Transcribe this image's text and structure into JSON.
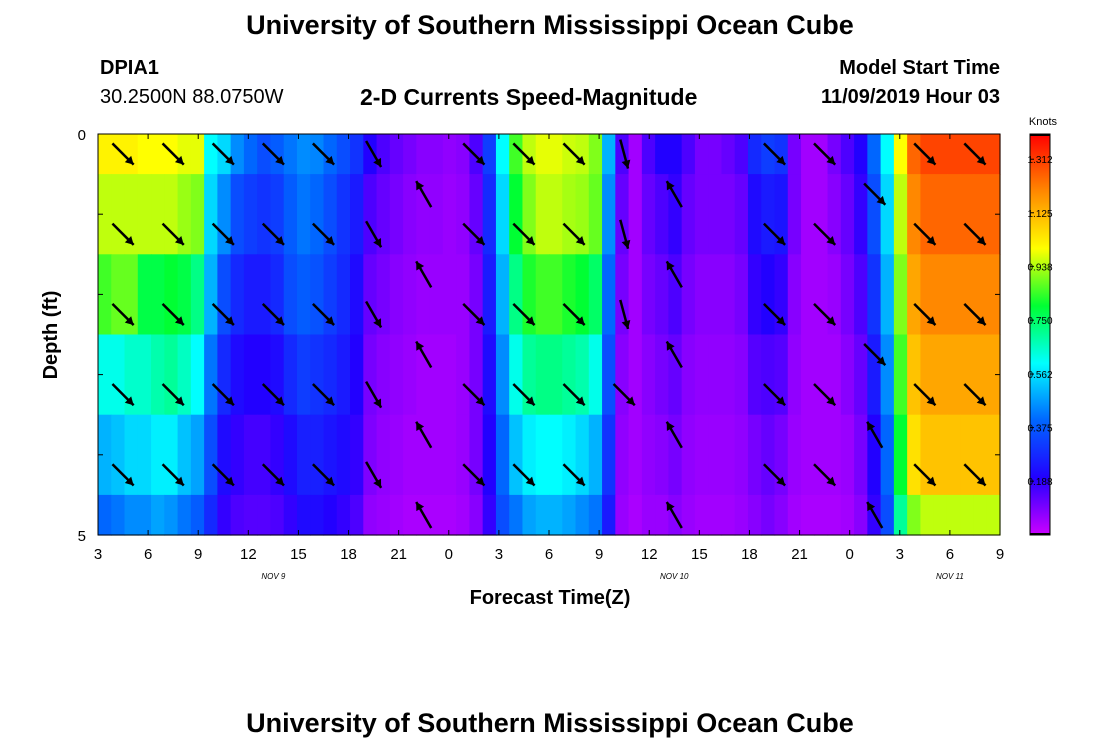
{
  "header": {
    "title": "University of Southern Mississippi Ocean Cube",
    "station": "DPIA1",
    "coords": "30.2500N 88.0750W",
    "product": "2-D Currents Speed-Magnitude",
    "model_start_label": "Model Start Time",
    "model_start_value": "11/09/2019 Hour 03"
  },
  "footer": {
    "title": "University of Southern Mississippi Ocean Cube"
  },
  "chart_data": {
    "type": "heatmap",
    "title": "2-D Currents Speed-Magnitude",
    "xlabel": "Forecast Time(Z)",
    "ylabel": "Depth (ft)",
    "x_range_hours": [
      0,
      54
    ],
    "y_range": [
      0,
      5
    ],
    "x_ticks": [
      "3",
      "6",
      "9",
      "12",
      "15",
      "18",
      "21",
      "0",
      "3",
      "6",
      "9",
      "12",
      "15",
      "18",
      "21",
      "0",
      "3",
      "6",
      "9"
    ],
    "y_ticks": [
      "0",
      "5"
    ],
    "date_labels": [
      {
        "text": "NOV 9",
        "hour": 10.5
      },
      {
        "text": "NOV 10",
        "hour": 34.5
      },
      {
        "text": "NOV 11",
        "hour": 51
      }
    ],
    "colorbar": {
      "unit": "Knots",
      "ticks": [
        "1.312",
        "1.125",
        "0.938",
        "0.750",
        "0.562",
        "0.375",
        "0.188"
      ],
      "tick_values": [
        1.312,
        1.125,
        0.938,
        0.75,
        0.562,
        0.375,
        0.188
      ],
      "range": [
        0,
        1.4
      ],
      "colors": [
        "#cc00ff",
        "#2200ff",
        "#0066ff",
        "#00ffff",
        "#00ff33",
        "#ffff00",
        "#ff8800",
        "#ff0000"
      ]
    },
    "depth_bins": [
      0.5,
      1.5,
      2.5,
      3.5,
      4.5,
      5.0
    ],
    "speed_knots": [
      [
        1.02,
        1.02,
        1.02,
        1.0,
        1.0,
        1.0,
        0.98,
        0.98,
        0.6,
        0.55,
        0.45,
        0.4,
        0.35,
        0.38,
        0.42,
        0.45,
        0.44,
        0.4,
        0.35,
        0.3,
        0.2,
        0.15,
        0.12,
        0.1,
        0.08,
        0.08,
        0.07,
        0.08,
        0.15,
        0.32,
        0.6,
        0.85,
        0.95,
        0.98,
        0.98,
        0.96,
        0.95,
        0.9,
        0.5,
        0.15,
        0.05,
        0.15,
        0.2,
        0.2,
        0.15,
        0.1,
        0.1,
        0.12,
        0.15,
        0.28,
        0.32,
        0.3,
        0.1,
        0.05,
        0.05,
        0.1,
        0.15,
        0.2,
        0.4,
        0.6,
        1.0,
        1.25,
        1.3,
        1.3,
        1.3,
        1.3,
        1.3,
        1.3
      ],
      [
        0.95,
        0.95,
        0.95,
        0.95,
        0.95,
        0.95,
        0.92,
        0.9,
        0.55,
        0.45,
        0.35,
        0.32,
        0.3,
        0.32,
        0.38,
        0.42,
        0.4,
        0.35,
        0.3,
        0.25,
        0.15,
        0.12,
        0.1,
        0.08,
        0.07,
        0.07,
        0.06,
        0.07,
        0.12,
        0.28,
        0.55,
        0.8,
        0.9,
        0.95,
        0.95,
        0.93,
        0.92,
        0.88,
        0.45,
        0.12,
        0.05,
        0.12,
        0.15,
        0.18,
        0.12,
        0.1,
        0.1,
        0.1,
        0.12,
        0.22,
        0.25,
        0.24,
        0.1,
        0.05,
        0.05,
        0.08,
        0.12,
        0.18,
        0.35,
        0.55,
        0.95,
        1.2,
        1.25,
        1.25,
        1.25,
        1.25,
        1.25,
        1.25
      ],
      [
        0.85,
        0.88,
        0.88,
        0.78,
        0.78,
        0.8,
        0.78,
        0.72,
        0.5,
        0.35,
        0.28,
        0.25,
        0.25,
        0.28,
        0.35,
        0.38,
        0.36,
        0.32,
        0.28,
        0.22,
        0.12,
        0.1,
        0.08,
        0.07,
        0.06,
        0.06,
        0.06,
        0.06,
        0.1,
        0.25,
        0.5,
        0.72,
        0.82,
        0.85,
        0.85,
        0.82,
        0.8,
        0.75,
        0.4,
        0.1,
        0.05,
        0.1,
        0.12,
        0.15,
        0.1,
        0.08,
        0.08,
        0.08,
        0.1,
        0.18,
        0.2,
        0.18,
        0.08,
        0.05,
        0.05,
        0.06,
        0.1,
        0.15,
        0.3,
        0.5,
        0.9,
        1.15,
        1.2,
        1.2,
        1.2,
        1.2,
        1.2,
        1.2
      ],
      [
        0.62,
        0.62,
        0.65,
        0.65,
        0.68,
        0.7,
        0.66,
        0.6,
        0.42,
        0.28,
        0.22,
        0.2,
        0.2,
        0.22,
        0.28,
        0.32,
        0.3,
        0.28,
        0.25,
        0.2,
        0.1,
        0.08,
        0.07,
        0.06,
        0.05,
        0.05,
        0.05,
        0.06,
        0.1,
        0.22,
        0.45,
        0.62,
        0.7,
        0.72,
        0.72,
        0.7,
        0.68,
        0.62,
        0.35,
        0.08,
        0.05,
        0.08,
        0.1,
        0.12,
        0.08,
        0.07,
        0.07,
        0.07,
        0.08,
        0.14,
        0.15,
        0.14,
        0.07,
        0.05,
        0.05,
        0.05,
        0.08,
        0.12,
        0.25,
        0.45,
        0.85,
        1.1,
        1.15,
        1.15,
        1.15,
        1.15,
        1.15,
        1.15
      ],
      [
        0.5,
        0.52,
        0.55,
        0.55,
        0.58,
        0.58,
        0.52,
        0.48,
        0.35,
        0.22,
        0.18,
        0.16,
        0.16,
        0.18,
        0.22,
        0.26,
        0.26,
        0.24,
        0.22,
        0.18,
        0.09,
        0.07,
        0.06,
        0.05,
        0.05,
        0.05,
        0.05,
        0.06,
        0.1,
        0.2,
        0.4,
        0.52,
        0.58,
        0.6,
        0.6,
        0.58,
        0.55,
        0.5,
        0.3,
        0.07,
        0.05,
        0.07,
        0.08,
        0.1,
        0.07,
        0.06,
        0.06,
        0.06,
        0.07,
        0.1,
        0.12,
        0.1,
        0.06,
        0.05,
        0.05,
        0.05,
        0.06,
        0.1,
        0.2,
        0.4,
        0.8,
        1.05,
        1.1,
        1.1,
        1.1,
        1.1,
        1.1,
        1.1
      ],
      [
        0.4,
        0.42,
        0.45,
        0.45,
        0.48,
        0.46,
        0.42,
        0.38,
        0.28,
        0.18,
        0.15,
        0.14,
        0.14,
        0.15,
        0.18,
        0.22,
        0.22,
        0.2,
        0.18,
        0.15,
        0.07,
        0.06,
        0.05,
        0.04,
        0.04,
        0.04,
        0.04,
        0.05,
        0.08,
        0.18,
        0.35,
        0.42,
        0.48,
        0.5,
        0.5,
        0.48,
        0.45,
        0.42,
        0.25,
        0.06,
        0.04,
        0.06,
        0.06,
        0.08,
        0.06,
        0.05,
        0.05,
        0.05,
        0.06,
        0.08,
        0.1,
        0.08,
        0.05,
        0.04,
        0.04,
        0.04,
        0.05,
        0.08,
        0.18,
        0.35,
        0.7,
        0.9,
        0.95,
        0.95,
        0.95,
        0.95,
        0.95,
        0.95
      ]
    ],
    "vectors": [
      {
        "hour": 1.5,
        "depth": 0.25,
        "dir": 135
      },
      {
        "hour": 1.5,
        "depth": 1.25,
        "dir": 135
      },
      {
        "hour": 1.5,
        "depth": 2.25,
        "dir": 135
      },
      {
        "hour": 1.5,
        "depth": 3.25,
        "dir": 135
      },
      {
        "hour": 1.5,
        "depth": 4.25,
        "dir": 135
      },
      {
        "hour": 4.5,
        "depth": 0.25,
        "dir": 135
      },
      {
        "hour": 4.5,
        "depth": 1.25,
        "dir": 135
      },
      {
        "hour": 4.5,
        "depth": 2.25,
        "dir": 135
      },
      {
        "hour": 4.5,
        "depth": 3.25,
        "dir": 135
      },
      {
        "hour": 4.5,
        "depth": 4.25,
        "dir": 135
      },
      {
        "hour": 7.5,
        "depth": 0.25,
        "dir": 135
      },
      {
        "hour": 7.5,
        "depth": 1.25,
        "dir": 135
      },
      {
        "hour": 7.5,
        "depth": 2.25,
        "dir": 135
      },
      {
        "hour": 7.5,
        "depth": 3.25,
        "dir": 135
      },
      {
        "hour": 7.5,
        "depth": 4.25,
        "dir": 135
      },
      {
        "hour": 10.5,
        "depth": 0.25,
        "dir": 135
      },
      {
        "hour": 10.5,
        "depth": 1.25,
        "dir": 135
      },
      {
        "hour": 10.5,
        "depth": 2.25,
        "dir": 135
      },
      {
        "hour": 10.5,
        "depth": 3.25,
        "dir": 135
      },
      {
        "hour": 10.5,
        "depth": 4.25,
        "dir": 135
      },
      {
        "hour": 13.5,
        "depth": 0.25,
        "dir": 135
      },
      {
        "hour": 13.5,
        "depth": 1.25,
        "dir": 135
      },
      {
        "hour": 13.5,
        "depth": 2.25,
        "dir": 135
      },
      {
        "hour": 13.5,
        "depth": 3.25,
        "dir": 135
      },
      {
        "hour": 13.5,
        "depth": 4.25,
        "dir": 135
      },
      {
        "hour": 16.5,
        "depth": 0.25,
        "dir": 150
      },
      {
        "hour": 16.5,
        "depth": 1.25,
        "dir": 150
      },
      {
        "hour": 16.5,
        "depth": 2.25,
        "dir": 150
      },
      {
        "hour": 16.5,
        "depth": 3.25,
        "dir": 150
      },
      {
        "hour": 16.5,
        "depth": 4.25,
        "dir": 150
      },
      {
        "hour": 19.5,
        "depth": 0.75,
        "dir": 330
      },
      {
        "hour": 19.5,
        "depth": 1.75,
        "dir": 330
      },
      {
        "hour": 19.5,
        "depth": 2.75,
        "dir": 330
      },
      {
        "hour": 19.5,
        "depth": 3.75,
        "dir": 330
      },
      {
        "hour": 19.5,
        "depth": 4.75,
        "dir": 330
      },
      {
        "hour": 22.5,
        "depth": 0.25,
        "dir": 135
      },
      {
        "hour": 22.5,
        "depth": 1.25,
        "dir": 135
      },
      {
        "hour": 22.5,
        "depth": 2.25,
        "dir": 135
      },
      {
        "hour": 22.5,
        "depth": 3.25,
        "dir": 135
      },
      {
        "hour": 22.5,
        "depth": 4.25,
        "dir": 135
      },
      {
        "hour": 25.5,
        "depth": 0.25,
        "dir": 135
      },
      {
        "hour": 25.5,
        "depth": 1.25,
        "dir": 135
      },
      {
        "hour": 25.5,
        "depth": 2.25,
        "dir": 135
      },
      {
        "hour": 25.5,
        "depth": 3.25,
        "dir": 135
      },
      {
        "hour": 25.5,
        "depth": 4.25,
        "dir": 135
      },
      {
        "hour": 28.5,
        "depth": 0.25,
        "dir": 135
      },
      {
        "hour": 28.5,
        "depth": 1.25,
        "dir": 135
      },
      {
        "hour": 28.5,
        "depth": 2.25,
        "dir": 135
      },
      {
        "hour": 28.5,
        "depth": 3.25,
        "dir": 135
      },
      {
        "hour": 28.5,
        "depth": 4.25,
        "dir": 135
      },
      {
        "hour": 31.5,
        "depth": 0.25,
        "dir": 165
      },
      {
        "hour": 31.5,
        "depth": 1.25,
        "dir": 165
      },
      {
        "hour": 31.5,
        "depth": 2.25,
        "dir": 165
      },
      {
        "hour": 31.5,
        "depth": 3.25,
        "dir": 135
      },
      {
        "hour": 34.5,
        "depth": 0.75,
        "dir": 330
      },
      {
        "hour": 34.5,
        "depth": 1.75,
        "dir": 330
      },
      {
        "hour": 34.5,
        "depth": 2.75,
        "dir": 330
      },
      {
        "hour": 34.5,
        "depth": 3.75,
        "dir": 330
      },
      {
        "hour": 34.5,
        "depth": 4.75,
        "dir": 330
      },
      {
        "hour": 40.5,
        "depth": 0.25,
        "dir": 135
      },
      {
        "hour": 40.5,
        "depth": 1.25,
        "dir": 135
      },
      {
        "hour": 40.5,
        "depth": 2.25,
        "dir": 135
      },
      {
        "hour": 40.5,
        "depth": 3.25,
        "dir": 135
      },
      {
        "hour": 40.5,
        "depth": 4.25,
        "dir": 135
      },
      {
        "hour": 43.5,
        "depth": 0.25,
        "dir": 135
      },
      {
        "hour": 43.5,
        "depth": 1.25,
        "dir": 135
      },
      {
        "hour": 43.5,
        "depth": 2.25,
        "dir": 135
      },
      {
        "hour": 43.5,
        "depth": 3.25,
        "dir": 135
      },
      {
        "hour": 43.5,
        "depth": 4.25,
        "dir": 135
      },
      {
        "hour": 46.5,
        "depth": 0.75,
        "dir": 135
      },
      {
        "hour": 46.5,
        "depth": 2.75,
        "dir": 135
      },
      {
        "hour": 46.5,
        "depth": 3.75,
        "dir": 330
      },
      {
        "hour": 46.5,
        "depth": 4.75,
        "dir": 330
      },
      {
        "hour": 49.5,
        "depth": 0.25,
        "dir": 135
      },
      {
        "hour": 49.5,
        "depth": 1.25,
        "dir": 135
      },
      {
        "hour": 49.5,
        "depth": 2.25,
        "dir": 135
      },
      {
        "hour": 49.5,
        "depth": 3.25,
        "dir": 135
      },
      {
        "hour": 49.5,
        "depth": 4.25,
        "dir": 135
      },
      {
        "hour": 52.5,
        "depth": 0.25,
        "dir": 135
      },
      {
        "hour": 52.5,
        "depth": 1.25,
        "dir": 135
      },
      {
        "hour": 52.5,
        "depth": 2.25,
        "dir": 135
      },
      {
        "hour": 52.5,
        "depth": 3.25,
        "dir": 135
      },
      {
        "hour": 52.5,
        "depth": 4.25,
        "dir": 135
      }
    ]
  }
}
